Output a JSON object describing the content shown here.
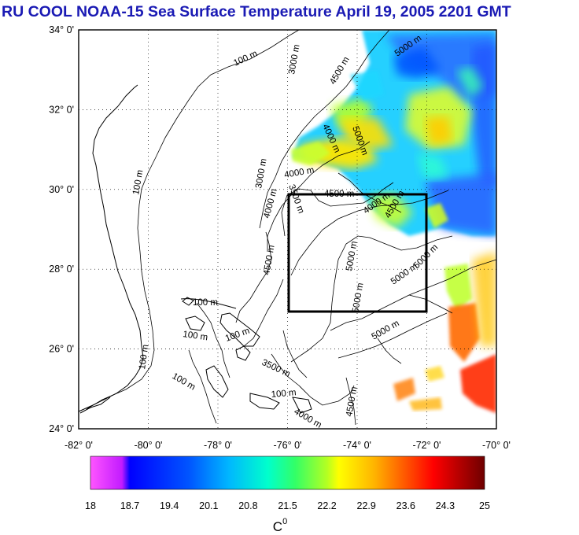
{
  "title": "RU COOL  NOAA-15 Sea Surface Temperature April 19, 2005 2201 GMT",
  "axes": {
    "x_ticks": [
      "-82° 0'",
      "-80° 0'",
      "-78° 0'",
      "-76° 0'",
      "-74° 0'",
      "-72° 0'",
      "-70° 0'"
    ],
    "y_ticks": [
      "34° 0'",
      "32° 0'",
      "30° 0'",
      "28° 0'",
      "26° 0'",
      "24° 0'"
    ],
    "lon_range": [
      -82,
      -70
    ],
    "lat_range": [
      24,
      34
    ],
    "grid": "dotted"
  },
  "colorbar": {
    "labels": [
      "18",
      "18.7",
      "19.4",
      "20.1",
      "20.8",
      "21.5",
      "22.2",
      "22.9",
      "23.6",
      "24.3",
      "25"
    ],
    "unit": "C",
    "unit_sup": "0",
    "range": [
      18,
      25
    ],
    "colors": [
      "#ff55ff",
      "#c21bff",
      "#0000ff",
      "#0055ff",
      "#00b6ff",
      "#00ffcc",
      "#33ff66",
      "#b4ff22",
      "#ffff00",
      "#ffb400",
      "#ff5500",
      "#ff0000",
      "#b00000",
      "#6e0000"
    ]
  },
  "contour_labels": [
    {
      "text": "100 m"
    },
    {
      "text": "100 m"
    },
    {
      "text": "100 m"
    },
    {
      "text": "100 m"
    },
    {
      "text": "100 m"
    },
    {
      "text": "100 m"
    },
    {
      "text": "100 m"
    },
    {
      "text": "100 m"
    },
    {
      "text": "3000 m"
    },
    {
      "text": "3000 m"
    },
    {
      "text": "4500 m"
    },
    {
      "text": "5000 m"
    },
    {
      "text": "4000 m"
    },
    {
      "text": "5000 m"
    },
    {
      "text": "4000 m"
    },
    {
      "text": "4500 m"
    },
    {
      "text": "4000 m"
    },
    {
      "text": "4500 m"
    },
    {
      "text": "3500 m"
    },
    {
      "text": "5000 m"
    },
    {
      "text": "5000 m"
    },
    {
      "text": "5000 m"
    },
    {
      "text": "5000 m"
    },
    {
      "text": "4000 m"
    },
    {
      "text": "5000 m"
    },
    {
      "text": "4500 m"
    },
    {
      "text": "3500 m"
    },
    {
      "text": "4000 m"
    },
    {
      "text": "4500 m"
    }
  ],
  "study_box": {
    "lon": [
      -76,
      -72
    ],
    "lat": [
      27,
      30
    ]
  },
  "colors": {
    "title": "#1a1ab4",
    "frame": "#000000",
    "land_line": "#000000"
  }
}
